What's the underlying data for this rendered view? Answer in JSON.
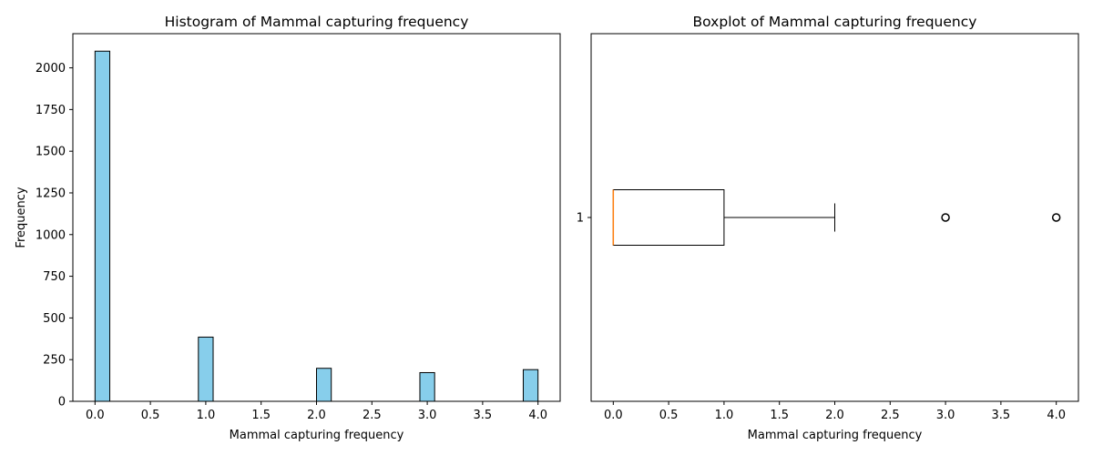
{
  "chart_data": [
    {
      "type": "bar",
      "title": "Histogram of Mammal capturing frequency",
      "xlabel": "Mammal capturing frequency",
      "ylabel": "Frequency",
      "xlim": [
        -0.2,
        4.2
      ],
      "ylim": [
        0,
        2205
      ],
      "xticks": [
        0.0,
        0.5,
        1.0,
        1.5,
        2.0,
        2.5,
        3.0,
        3.5,
        4.0
      ],
      "xtick_labels": [
        "0.0",
        "0.5",
        "1.0",
        "1.5",
        "2.0",
        "2.5",
        "3.0",
        "3.5",
        "4.0"
      ],
      "yticks": [
        0,
        250,
        500,
        750,
        1000,
        1250,
        1500,
        1750,
        2000
      ],
      "ytick_labels": [
        "0",
        "250",
        "500",
        "750",
        "1000",
        "1250",
        "1500",
        "1750",
        "2000"
      ],
      "bin_width": 0.1333,
      "bins": [
        {
          "x0": 0.0,
          "count": 2100
        },
        {
          "x0": 0.9333,
          "count": 385
        },
        {
          "x0": 2.0,
          "count": 198
        },
        {
          "x0": 2.9333,
          "count": 172
        },
        {
          "x0": 3.8667,
          "count": 190
        }
      ],
      "bar_color": "#87ceeb",
      "edge_color": "#000000",
      "grid": false
    },
    {
      "type": "boxplot",
      "title": "Boxplot of Mammal capturing frequency",
      "xlabel": "Mammal capturing frequency",
      "orientation": "horizontal",
      "xlim": [
        -0.2,
        4.2
      ],
      "xticks": [
        0.0,
        0.5,
        1.0,
        1.5,
        2.0,
        2.5,
        3.0,
        3.5,
        4.0
      ],
      "xtick_labels": [
        "0.0",
        "0.5",
        "1.0",
        "1.5",
        "2.0",
        "2.5",
        "3.0",
        "3.5",
        "4.0"
      ],
      "ytick_labels": [
        "1"
      ],
      "box": {
        "min": 0,
        "q1": 0,
        "median": 0,
        "q3": 1,
        "max": 2
      },
      "outliers": [
        3,
        4
      ],
      "median_color": "#ff7f0e",
      "box_color": "#000000",
      "grid": false
    }
  ]
}
